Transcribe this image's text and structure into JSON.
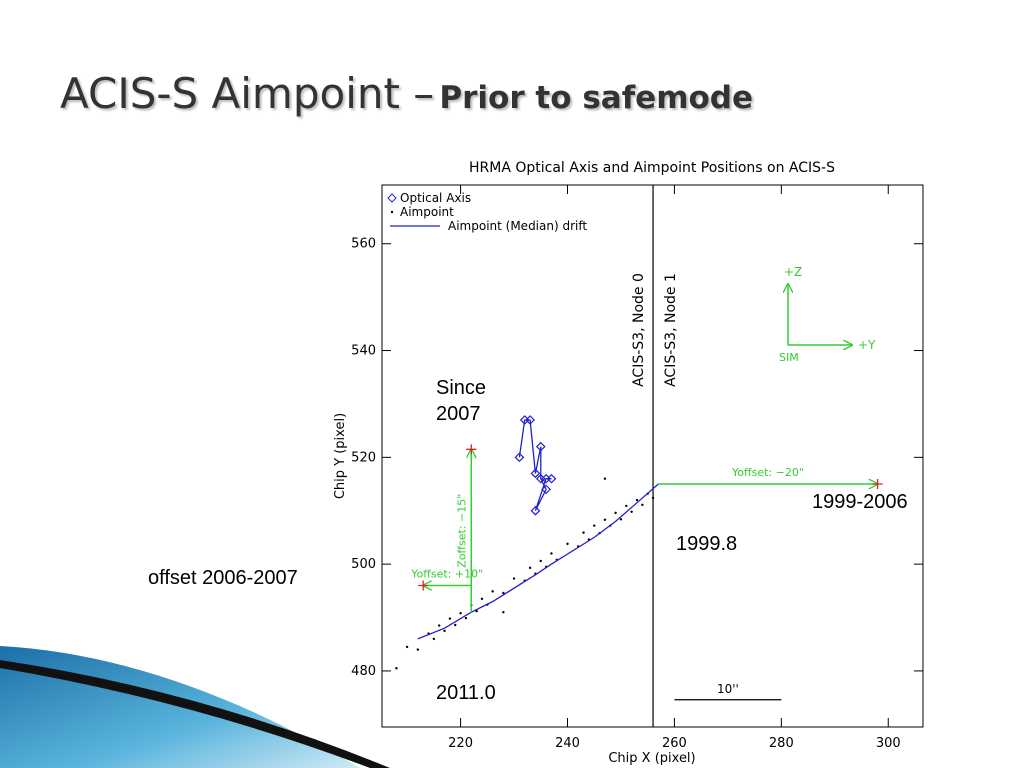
{
  "slide": {
    "title": "ACIS-S Aimpoint –",
    "subtitle": "Prior to safemode",
    "notes": [
      "Since 2007",
      "1999-2006",
      "1999.8",
      "offset 2006-2007",
      "2011.0"
    ]
  },
  "chart_data": {
    "type": "scatter",
    "title": "HRMA Optical Axis and Aimpoint Positions on ACIS-S",
    "xlabel": "Chip X (pixel)",
    "ylabel": "Chip Y (pixel)",
    "xlim": [
      205.3,
      306.5
    ],
    "ylim": [
      469.5,
      571
    ],
    "xticks": [
      220,
      240,
      260,
      280,
      300
    ],
    "yticks": [
      480,
      500,
      520,
      540,
      560
    ],
    "legend": "upper left",
    "series": [
      {
        "name": "Optical Axis",
        "marker": "diamond",
        "connected": true,
        "color": "#2222cc",
        "x": [
          231,
          232,
          233,
          234,
          235,
          235,
          236,
          234,
          236,
          237
        ],
        "y": [
          520,
          527,
          527,
          517,
          522,
          516,
          514,
          510,
          516,
          516
        ]
      },
      {
        "name": "Aimpoint",
        "marker": "dot",
        "color": "#000000",
        "x": [
          210,
          212,
          214,
          215,
          216,
          217,
          218,
          219,
          220,
          221,
          222,
          223,
          224,
          225,
          226,
          228,
          230,
          232,
          233,
          234,
          235,
          236,
          237,
          238,
          240,
          242,
          243,
          244,
          245,
          246,
          247,
          248,
          249,
          250,
          251,
          252,
          253,
          254,
          255,
          256,
          208,
          247,
          228
        ],
        "y": [
          484.5,
          484,
          487,
          486,
          488.5,
          487.5,
          489.8,
          488.6,
          490.8,
          489.9,
          492.3,
          491.2,
          493.5,
          492.4,
          494.9,
          494.6,
          497.3,
          496.9,
          499.3,
          498.2,
          500.6,
          499.5,
          502,
          500.8,
          503.8,
          503.3,
          505.9,
          504.6,
          507.2,
          505.8,
          508.3,
          507.2,
          509.6,
          508.4,
          510.9,
          509.8,
          512,
          511.1,
          513.2,
          512.4,
          480.5,
          516,
          491
        ]
      },
      {
        "name": "Aimpoint (Median) drift",
        "marker": "line",
        "color": "#2222cc",
        "x": [
          257,
          249,
          245,
          237,
          234,
          226,
          222,
          217,
          212
        ],
        "y": [
          515,
          508,
          505,
          500,
          498,
          493,
          491,
          488,
          486
        ]
      }
    ],
    "node_boundary": {
      "x": 256,
      "labels": [
        "ACIS-S3, Node 0",
        "ACIS-S3, Node 1"
      ]
    },
    "offsets": [
      {
        "label": "Yoffset: −20\"",
        "x": [
          257,
          298
        ],
        "y": [
          515,
          515
        ]
      },
      {
        "label": "Zoffset: −15\"",
        "x": [
          222,
          222
        ],
        "y": [
          491,
          521.5
        ]
      },
      {
        "label": "Yoffset: +10\"",
        "x": [
          222,
          213
        ],
        "y": [
          496,
          496
        ]
      }
    ],
    "offset_color": "#33cc33",
    "compass": [
      "+Z",
      "+Y",
      "SIM"
    ],
    "scale_bar": {
      "label": "10''",
      "x": [
        260,
        280
      ],
      "y": 474.6
    }
  }
}
